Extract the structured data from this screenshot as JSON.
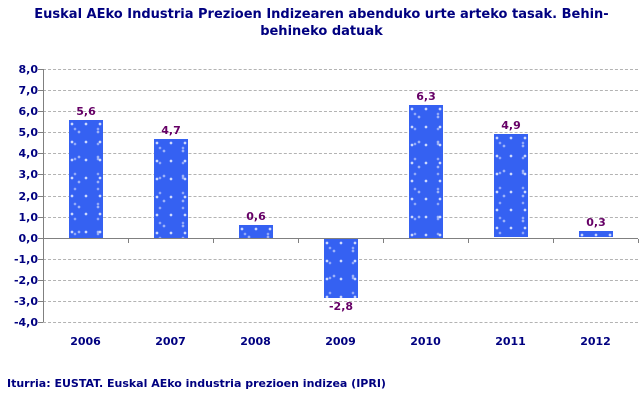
{
  "title": "Euskal AEko Industria Prezioen Indizearen abenduko urte arteko tasak.  Behin-behineko datuak",
  "source": "Iturria: EUSTAT. Euskal AEko industria prezioen indizea (IPRI)",
  "chart_data": {
    "type": "bar",
    "categories": [
      "2006",
      "2007",
      "2008",
      "2009",
      "2010",
      "2011",
      "2012"
    ],
    "values": [
      5.6,
      4.7,
      0.6,
      -2.8,
      6.3,
      4.9,
      0.3
    ],
    "value_labels": [
      "5,6",
      "4,7",
      "0,6",
      "-2,8",
      "6,3",
      "4,9",
      "0,3"
    ],
    "title": "Euskal AEko Industria Prezioen Indizearen abenduko urte arteko tasak.  Behin-behineko datuak",
    "xlabel": "",
    "ylabel": "",
    "ylim": [
      -4,
      8
    ],
    "ytick_step": 1,
    "ytick_labels": [
      "8,0",
      "7,0",
      "6,0",
      "5,0",
      "4,0",
      "3,0",
      "2,0",
      "1,0",
      "0,0",
      "-1,0",
      "-2,0",
      "-3,0",
      "-4,0"
    ],
    "grid": "horizontal-dashed",
    "legend": "none",
    "colors": {
      "bar": "#3561f2",
      "value_label": "#660066",
      "axis_text": "#000080",
      "title_text": "#000080",
      "gridline": "#b3b3b3",
      "axis_line": "#808080"
    }
  }
}
